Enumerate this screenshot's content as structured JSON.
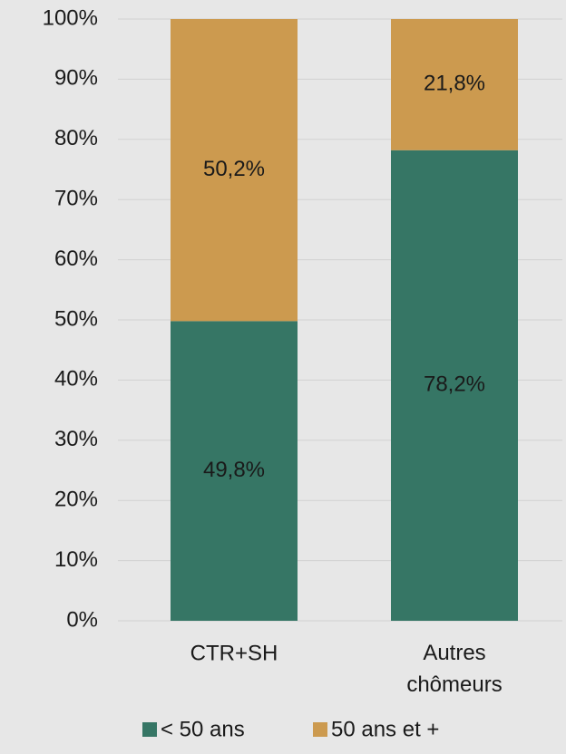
{
  "chart_data": {
    "type": "stacked_bar",
    "categories": [
      "CTR+SH",
      "Autres chômeurs"
    ],
    "series": [
      {
        "name": "< 50 ans",
        "color": "#367665",
        "values": [
          49.8,
          78.2
        ],
        "value_labels": [
          "49,8%",
          "78,2%"
        ]
      },
      {
        "name": "50 ans et +",
        "color": "#cc9a4f",
        "values": [
          50.2,
          21.8
        ],
        "value_labels": [
          "50,2%",
          "21,8%"
        ]
      }
    ],
    "ylim": [
      0,
      100
    ],
    "yticks": [
      {
        "value": 0,
        "label": "0%"
      },
      {
        "value": 10,
        "label": "10%"
      },
      {
        "value": 20,
        "label": "20%"
      },
      {
        "value": 30,
        "label": "30%"
      },
      {
        "value": 40,
        "label": "40%"
      },
      {
        "value": 50,
        "label": "50%"
      },
      {
        "value": 60,
        "label": "60%"
      },
      {
        "value": 70,
        "label": "70%"
      },
      {
        "value": 80,
        "label": "80%"
      },
      {
        "value": 90,
        "label": "90%"
      },
      {
        "value": 100,
        "label": "100%"
      }
    ],
    "grid": true,
    "legend": "bottom"
  }
}
